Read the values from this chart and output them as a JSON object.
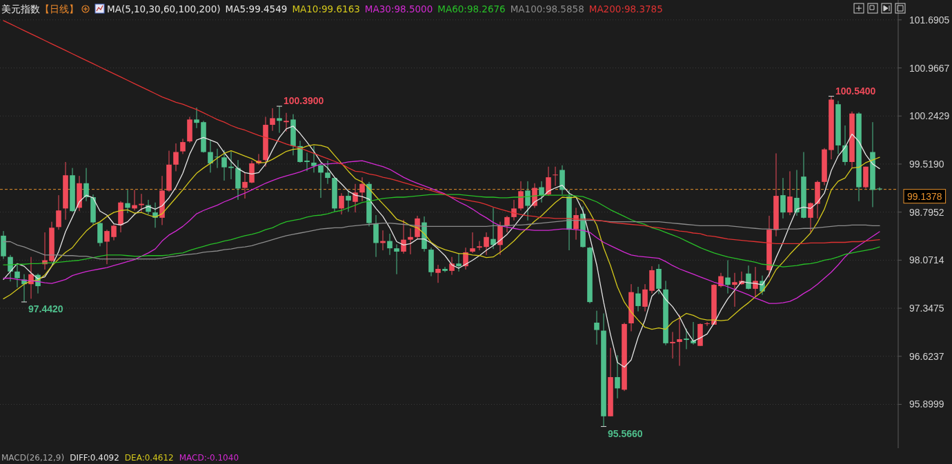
{
  "chart_data": {
    "type": "candlestick",
    "title": "美元指数",
    "subtitle": "【日线】",
    "legend_title": "MA(5,10,30,60,100,200)",
    "categories": [
      null,
      null,
      null,
      null,
      null,
      null,
      null,
      null,
      null,
      null,
      null,
      null,
      null,
      null,
      null,
      null,
      null,
      null,
      null,
      null,
      null,
      null,
      null,
      null,
      null,
      null,
      null,
      null,
      null,
      null,
      null,
      null,
      null,
      null,
      null,
      null,
      null,
      null,
      null,
      null,
      null,
      null,
      null,
      null,
      null,
      null,
      null,
      null,
      null,
      null,
      null,
      null,
      null,
      null,
      null,
      null,
      null,
      null,
      null,
      null,
      null,
      null,
      null,
      null,
      null,
      null,
      null,
      null,
      null,
      null,
      null,
      null,
      null,
      null,
      null,
      null,
      null,
      null,
      null,
      null,
      null,
      null,
      null,
      null,
      null,
      null,
      null,
      null,
      null,
      null,
      null,
      null,
      null,
      null,
      null,
      null,
      null,
      null,
      null,
      null,
      null,
      null,
      null,
      null,
      null,
      null,
      null,
      null,
      null,
      null,
      null,
      null,
      null,
      null,
      null,
      null,
      null,
      null,
      null,
      null,
      null,
      null,
      null,
      null,
      null,
      null,
      null,
      null
    ],
    "ohlc": [
      [
        98.44,
        98.51,
        98.09,
        98.13
      ],
      [
        98.12,
        98.15,
        97.75,
        97.9
      ],
      [
        97.9,
        98.01,
        97.66,
        97.8
      ],
      [
        97.78,
        97.86,
        97.442,
        97.71
      ],
      [
        97.71,
        98.12,
        97.49,
        97.86
      ],
      [
        97.85,
        97.87,
        97.57,
        97.68
      ],
      [
        98.01,
        98.49,
        97.93,
        98.07
      ],
      [
        98.06,
        98.65,
        98.04,
        98.56
      ],
      [
        98.57,
        99.05,
        98.53,
        98.82
      ],
      [
        98.85,
        99.55,
        98.68,
        99.35
      ],
      [
        99.35,
        99.46,
        98.8,
        98.81
      ],
      [
        98.86,
        99.34,
        98.81,
        99.23
      ],
      [
        99.23,
        99.46,
        98.96,
        99.02
      ],
      [
        99.02,
        99.06,
        98.61,
        98.64
      ],
      [
        98.63,
        98.64,
        98.28,
        98.33
      ],
      [
        98.35,
        98.53,
        98.01,
        98.51
      ],
      [
        98.42,
        98.61,
        98.37,
        98.59
      ],
      [
        98.6,
        98.96,
        98.49,
        98.94
      ],
      [
        98.93,
        99.13,
        98.78,
        98.86
      ],
      [
        98.85,
        99.13,
        98.82,
        98.9
      ],
      [
        98.9,
        99.07,
        98.8,
        98.92
      ],
      [
        98.9,
        98.98,
        98.76,
        98.8
      ],
      [
        98.79,
        98.94,
        98.56,
        98.71
      ],
      [
        98.71,
        99.34,
        98.6,
        99.12
      ],
      [
        99.12,
        99.72,
        99.1,
        99.51
      ],
      [
        99.51,
        99.83,
        99.41,
        99.7
      ],
      [
        99.71,
        99.9,
        99.67,
        99.85
      ],
      [
        99.86,
        100.23,
        99.84,
        100.19
      ],
      [
        100.19,
        100.37,
        100.06,
        100.14
      ],
      [
        100.15,
        100.17,
        99.69,
        99.7
      ],
      [
        99.7,
        99.88,
        99.39,
        99.53
      ],
      [
        99.63,
        99.75,
        99.46,
        99.62
      ],
      [
        99.62,
        99.73,
        99.27,
        99.47
      ],
      [
        99.48,
        99.71,
        99.29,
        99.46
      ],
      [
        99.46,
        99.58,
        98.98,
        99.15
      ],
      [
        99.16,
        99.39,
        99.0,
        99.25
      ],
      [
        99.24,
        99.57,
        99.23,
        99.53
      ],
      [
        99.53,
        99.67,
        99.51,
        99.57
      ],
      [
        99.58,
        100.23,
        99.48,
        100.11
      ],
      [
        100.11,
        100.36,
        100.02,
        100.21
      ],
      [
        100.21,
        100.39,
        99.99,
        100.17
      ],
      [
        100.15,
        100.29,
        100.01,
        100.17
      ],
      [
        100.19,
        100.27,
        99.65,
        99.79
      ],
      [
        99.79,
        99.87,
        99.54,
        99.55
      ],
      [
        99.57,
        99.69,
        99.41,
        99.55
      ],
      [
        99.54,
        99.79,
        99.39,
        99.49
      ],
      [
        99.5,
        99.53,
        99.01,
        99.39
      ],
      [
        99.39,
        99.57,
        99.22,
        99.31
      ],
      [
        99.31,
        99.32,
        98.8,
        98.85
      ],
      [
        98.85,
        99.08,
        98.76,
        99.04
      ],
      [
        99.04,
        99.12,
        98.8,
        98.97
      ],
      [
        98.95,
        99.22,
        98.79,
        99.09
      ],
      [
        99.09,
        99.32,
        98.96,
        99.22
      ],
      [
        99.22,
        99.25,
        98.58,
        98.63
      ],
      [
        98.62,
        98.75,
        98.12,
        98.33
      ],
      [
        98.33,
        98.52,
        98.22,
        98.36
      ],
      [
        98.36,
        98.47,
        98.15,
        98.25
      ],
      [
        98.25,
        98.31,
        97.86,
        98.2
      ],
      [
        98.2,
        98.68,
        98.17,
        98.38
      ],
      [
        98.38,
        98.55,
        98.16,
        98.42
      ],
      [
        98.42,
        98.74,
        98.39,
        98.7
      ],
      [
        98.64,
        98.73,
        98.2,
        98.24
      ],
      [
        98.23,
        98.26,
        97.83,
        97.89
      ],
      [
        97.88,
        98.0,
        97.73,
        97.94
      ],
      [
        97.94,
        97.97,
        97.89,
        97.91
      ],
      [
        97.91,
        98.12,
        97.85,
        98.02
      ],
      [
        98.02,
        98.18,
        97.9,
        97.98
      ],
      [
        97.98,
        98.26,
        97.93,
        98.19
      ],
      [
        98.2,
        98.49,
        98.18,
        98.25
      ],
      [
        98.26,
        98.36,
        98.22,
        98.28
      ],
      [
        98.27,
        98.49,
        98.15,
        98.42
      ],
      [
        98.39,
        98.86,
        98.24,
        98.3
      ],
      [
        98.3,
        98.65,
        98.15,
        98.59
      ],
      [
        98.59,
        98.74,
        98.49,
        98.72
      ],
      [
        98.72,
        98.98,
        98.67,
        98.85
      ],
      [
        98.85,
        99.26,
        98.82,
        99.11
      ],
      [
        99.12,
        99.26,
        98.67,
        98.89
      ],
      [
        98.89,
        99.23,
        98.86,
        99.16
      ],
      [
        99.17,
        99.26,
        98.94,
        99.05
      ],
      [
        99.06,
        99.48,
        99.04,
        99.32
      ],
      [
        99.35,
        99.48,
        99.19,
        99.36
      ],
      [
        99.43,
        99.5,
        99.06,
        99.13
      ],
      [
        99.03,
        99.13,
        98.22,
        98.53
      ],
      [
        98.54,
        98.86,
        98.38,
        98.75
      ],
      [
        98.77,
        98.88,
        98.26,
        98.27
      ],
      [
        98.26,
        98.27,
        97.42,
        97.44
      ],
      [
        97.13,
        97.31,
        96.8,
        97.02
      ],
      [
        97.01,
        97.27,
        95.566,
        95.72
      ],
      [
        95.72,
        96.75,
        95.72,
        96.31
      ],
      [
        96.31,
        96.64,
        95.99,
        96.14
      ],
      [
        96.12,
        97.13,
        96.1,
        97.11
      ],
      [
        97.12,
        97.71,
        97.0,
        97.59
      ],
      [
        97.57,
        97.67,
        97.3,
        97.38
      ],
      [
        97.37,
        97.71,
        97.3,
        97.63
      ],
      [
        97.61,
        97.98,
        97.57,
        97.92
      ],
      [
        97.94,
        98.01,
        97.56,
        97.64
      ],
      [
        97.63,
        97.76,
        96.79,
        96.82
      ],
      [
        96.82,
        96.99,
        96.59,
        96.84
      ],
      [
        96.84,
        97.25,
        96.48,
        96.88
      ],
      [
        96.89,
        97.04,
        96.73,
        96.87
      ],
      [
        96.86,
        97.14,
        96.8,
        96.82
      ],
      [
        96.78,
        97.12,
        96.78,
        97.11
      ],
      [
        97.11,
        97.14,
        97.08,
        97.12
      ],
      [
        97.1,
        97.71,
        97.1,
        97.7
      ],
      [
        97.68,
        97.88,
        97.66,
        97.83
      ],
      [
        97.81,
        98.07,
        97.57,
        97.7
      ],
      [
        97.7,
        97.88,
        97.37,
        97.74
      ],
      [
        97.71,
        97.9,
        97.7,
        97.76
      ],
      [
        97.87,
        97.99,
        97.63,
        97.64
      ],
      [
        97.64,
        97.97,
        97.52,
        97.76
      ],
      [
        97.76,
        97.84,
        97.55,
        97.6
      ],
      [
        97.92,
        98.74,
        97.81,
        98.53
      ],
      [
        98.53,
        99.68,
        98.43,
        99.04
      ],
      [
        99.05,
        99.31,
        98.7,
        98.79
      ],
      [
        98.79,
        99.41,
        98.75,
        99.03
      ],
      [
        99.01,
        99.43,
        98.74,
        98.79
      ],
      [
        99.33,
        99.7,
        98.7,
        98.71
      ],
      [
        98.71,
        98.94,
        98.49,
        98.93
      ],
      [
        98.92,
        99.27,
        98.7,
        99.25
      ],
      [
        99.25,
        99.76,
        99.2,
        99.74
      ],
      [
        99.73,
        100.54,
        99.59,
        100.49
      ],
      [
        100.42,
        100.47,
        99.67,
        99.8
      ],
      [
        99.8,
        100.1,
        99.5,
        99.55
      ],
      [
        99.55,
        100.31,
        99.46,
        100.28
      ],
      [
        100.28,
        100.3,
        98.96,
        99.17
      ],
      [
        99.17,
        99.48,
        99.15,
        99.48
      ],
      [
        99.7,
        100.15,
        98.87,
        99.13
      ],
      [
        99.15,
        99.17,
        99.12,
        99.1378
      ]
    ],
    "colors": [
      "#4fbf8c",
      "#4fbf8c",
      "#4fbf8c",
      "#4fbf8c",
      "#f04b5a",
      "#4fbf8c",
      "#f04b5a",
      "#f04b5a",
      "#f04b5a",
      "#f04b5a",
      "#4fbf8c",
      "#f04b5a",
      "#4fbf8c",
      "#4fbf8c",
      "#4fbf8c",
      "#f04b5a",
      "#f04b5a",
      "#f04b5a",
      "#4fbf8c",
      "#f04b5a",
      "#f04b5a",
      "#4fbf8c",
      "#4fbf8c",
      "#f04b5a",
      "#f04b5a",
      "#f04b5a",
      "#f04b5a",
      "#f04b5a",
      "#4fbf8c",
      "#4fbf8c",
      "#4fbf8c",
      "#4fbf8c",
      "#4fbf8c",
      "#4fbf8c",
      "#4fbf8c",
      "#f04b5a",
      "#f04b5a",
      "#f04b5a",
      "#f04b5a",
      "#f04b5a",
      "#4fbf8c",
      "#f04b5a",
      "#4fbf8c",
      "#4fbf8c",
      "#4fbf8c",
      "#4fbf8c",
      "#4fbf8c",
      "#4fbf8c",
      "#4fbf8c",
      "#f04b5a",
      "#4fbf8c",
      "#f04b5a",
      "#f04b5a",
      "#4fbf8c",
      "#4fbf8c",
      "#f04b5a",
      "#4fbf8c",
      "#4fbf8c",
      "#f04b5a",
      "#f04b5a",
      "#f04b5a",
      "#4fbf8c",
      "#4fbf8c",
      "#f04b5a",
      "#4fbf8c",
      "#f04b5a",
      "#4fbf8c",
      "#f04b5a",
      "#f04b5a",
      "#f04b5a",
      "#f04b5a",
      "#4fbf8c",
      "#f04b5a",
      "#f04b5a",
      "#f04b5a",
      "#f04b5a",
      "#4fbf8c",
      "#f04b5a",
      "#4fbf8c",
      "#f04b5a",
      "#f04b5a",
      "#4fbf8c",
      "#4fbf8c",
      "#f04b5a",
      "#4fbf8c",
      "#4fbf8c",
      "#4fbf8c",
      "#4fbf8c",
      "#f04b5a",
      "#4fbf8c",
      "#f04b5a",
      "#f04b5a",
      "#4fbf8c",
      "#f04b5a",
      "#f04b5a",
      "#4fbf8c",
      "#4fbf8c",
      "#f04b5a",
      "#f04b5a",
      "#4fbf8c",
      "#4fbf8c",
      "#f04b5a",
      "#f04b5a",
      "#f04b5a",
      "#f04b5a",
      "#4fbf8c",
      "#f04b5a",
      "#f04b5a",
      "#4fbf8c",
      "#f04b5a",
      "#4fbf8c",
      "#f04b5a",
      "#f04b5a",
      "#4fbf8c",
      "#f04b5a",
      "#4fbf8c",
      "#4fbf8c",
      "#f04b5a",
      "#f04b5a",
      "#f04b5a",
      "#f04b5a",
      "#4fbf8c",
      "#4fbf8c",
      "#f04b5a",
      "#4fbf8c",
      "#f04b5a",
      "#4fbf8c",
      "#4fbf8c"
    ],
    "series": [
      {
        "name": "MA5:99.4549",
        "type": "line",
        "color": "#e6e6e6",
        "values": [
          97.78,
          97.9,
          98.02,
          97.98,
          97.88,
          97.79,
          97.82,
          97.98,
          98.2,
          98.5,
          98.72,
          98.95,
          99.05,
          99.01,
          98.81,
          98.75,
          98.62,
          98.6,
          98.65,
          98.76,
          98.84,
          98.88,
          98.84,
          98.89,
          99.01,
          99.17,
          99.38,
          99.67,
          99.88,
          99.92,
          99.88,
          99.84,
          99.69,
          99.56,
          99.45,
          99.39,
          99.37,
          99.39,
          99.52,
          99.73,
          99.92,
          100.05,
          100.09,
          99.98,
          99.85,
          99.71,
          99.55,
          99.46,
          99.32,
          99.22,
          99.11,
          99.05,
          99.03,
          98.99,
          98.85,
          98.73,
          98.56,
          98.35,
          98.3,
          98.32,
          98.39,
          98.39,
          98.33,
          98.24,
          98.14,
          98.0,
          97.95,
          98.01,
          98.07,
          98.14,
          98.22,
          98.29,
          98.37,
          98.46,
          98.58,
          98.71,
          98.83,
          98.95,
          99.01,
          99.11,
          99.16,
          99.2,
          99.08,
          99.02,
          98.81,
          98.42,
          98.0,
          97.44,
          96.95,
          96.53,
          96.46,
          96.57,
          96.91,
          97.17,
          97.53,
          97.63,
          97.48,
          97.37,
          97.22,
          97.01,
          96.85,
          96.9,
          96.96,
          97.12,
          97.32,
          97.49,
          97.62,
          97.75,
          97.73,
          97.72,
          97.7,
          97.86,
          98.11,
          98.34,
          98.6,
          98.84,
          98.87,
          98.85,
          98.94,
          99.08,
          99.42,
          99.64,
          99.77,
          99.97,
          99.86,
          99.66,
          99.52,
          99.45
        ]
      },
      {
        "name": "MA10:99.6163",
        "type": "line",
        "color": "#d4c81c",
        "values": [
          97.49,
          97.55,
          97.63,
          97.71,
          97.76,
          97.77,
          97.85,
          97.98,
          98.09,
          98.19,
          98.26,
          98.39,
          98.51,
          98.6,
          98.65,
          98.73,
          98.79,
          98.82,
          98.83,
          98.78,
          98.79,
          98.75,
          98.72,
          98.77,
          98.89,
          99.01,
          99.13,
          99.26,
          99.38,
          99.46,
          99.53,
          99.61,
          99.68,
          99.72,
          99.68,
          99.64,
          99.6,
          99.54,
          99.54,
          99.59,
          99.65,
          99.71,
          99.74,
          99.75,
          99.79,
          99.81,
          99.8,
          99.77,
          99.65,
          99.53,
          99.41,
          99.3,
          99.25,
          99.15,
          99.03,
          98.92,
          98.81,
          98.69,
          98.65,
          98.59,
          98.56,
          98.47,
          98.34,
          98.27,
          98.23,
          98.2,
          98.17,
          98.17,
          98.15,
          98.14,
          98.11,
          98.12,
          98.19,
          98.27,
          98.36,
          98.47,
          98.56,
          98.66,
          98.74,
          98.84,
          98.94,
          99.02,
          99.01,
          99.02,
          98.96,
          98.79,
          98.6,
          98.26,
          97.99,
          97.67,
          97.44,
          97.29,
          97.17,
          97.06,
          97.03,
          97.05,
          97.03,
          97.14,
          97.2,
          97.27,
          97.24,
          97.19,
          97.17,
          97.17,
          97.16,
          97.17,
          97.26,
          97.35,
          97.43,
          97.52,
          97.6,
          97.74,
          97.93,
          98.04,
          98.16,
          98.27,
          98.37,
          98.48,
          98.64,
          98.84,
          99.13,
          99.26,
          99.31,
          99.46,
          99.47,
          99.54,
          99.58,
          99.62
        ]
      },
      {
        "name": "MA30:98.5000",
        "type": "line",
        "color": "#d42ad4",
        "values": [
          97.8,
          97.8,
          97.78,
          97.77,
          97.76,
          97.75,
          97.73,
          97.72,
          97.75,
          97.78,
          97.84,
          97.87,
          97.9,
          97.92,
          97.94,
          97.96,
          97.99,
          98.02,
          98.05,
          98.08,
          98.13,
          98.18,
          98.24,
          98.36,
          98.45,
          98.51,
          98.58,
          98.67,
          98.77,
          98.82,
          98.86,
          98.9,
          98.95,
          98.99,
          99.04,
          99.08,
          99.13,
          99.18,
          99.23,
          99.27,
          99.31,
          99.34,
          99.37,
          99.4,
          99.44,
          99.48,
          99.52,
          99.52,
          99.53,
          99.53,
          99.55,
          99.56,
          99.57,
          99.54,
          99.51,
          99.48,
          99.44,
          99.38,
          99.32,
          99.27,
          99.23,
          99.19,
          99.15,
          99.11,
          99.07,
          99.01,
          98.95,
          98.9,
          98.84,
          98.77,
          98.71,
          98.64,
          98.59,
          98.57,
          98.55,
          98.53,
          98.53,
          98.52,
          98.52,
          98.52,
          98.53,
          98.54,
          98.54,
          98.53,
          98.52,
          98.49,
          98.41,
          98.34,
          98.29,
          98.24,
          98.19,
          98.15,
          98.13,
          98.12,
          98.11,
          98.1,
          98.05,
          97.99,
          97.94,
          97.9,
          97.86,
          97.82,
          97.78,
          97.74,
          97.71,
          97.67,
          97.63,
          97.59,
          97.55,
          97.5,
          97.46,
          97.42,
          97.42,
          97.43,
          97.45,
          97.5,
          97.57,
          97.63,
          97.71,
          97.8,
          97.89,
          98.0,
          98.12,
          98.22,
          98.29,
          98.36,
          98.43,
          98.5
        ]
      },
      {
        "name": "MA60:98.2676",
        "type": "line",
        "color": "#28c028",
        "values": [
          98.0,
          98.0,
          98.01,
          98.01,
          98.02,
          98.02,
          98.03,
          98.03,
          98.04,
          98.05,
          98.06,
          98.07,
          98.09,
          98.11,
          98.13,
          98.15,
          98.15,
          98.15,
          98.14,
          98.13,
          98.13,
          98.14,
          98.14,
          98.14,
          98.15,
          98.17,
          98.18,
          98.22,
          98.25,
          98.28,
          98.31,
          98.33,
          98.36,
          98.38,
          98.41,
          98.44,
          98.46,
          98.49,
          98.53,
          98.56,
          98.61,
          98.65,
          98.67,
          98.69,
          98.72,
          98.74,
          98.75,
          98.77,
          98.8,
          98.82,
          98.86,
          98.9,
          98.94,
          98.96,
          98.98,
          99.0,
          99.01,
          99.02,
          99.02,
          99.03,
          99.04,
          99.05,
          99.06,
          99.06,
          99.06,
          99.06,
          99.06,
          99.05,
          99.04,
          99.03,
          99.02,
          99.02,
          99.01,
          99.01,
          99.02,
          99.02,
          99.03,
          99.04,
          99.05,
          99.05,
          99.05,
          99.05,
          99.05,
          99.04,
          99.03,
          98.99,
          98.95,
          98.89,
          98.83,
          98.78,
          98.73,
          98.68,
          98.64,
          98.61,
          98.56,
          98.53,
          98.49,
          98.45,
          98.41,
          98.36,
          98.31,
          98.26,
          98.22,
          98.18,
          98.15,
          98.12,
          98.1,
          98.08,
          98.06,
          98.04,
          98.01,
          98.0,
          97.99,
          97.97,
          97.98,
          97.99,
          98.01,
          98.02,
          98.04,
          98.07,
          98.09,
          98.12,
          98.16,
          98.18,
          98.2,
          98.22,
          98.24,
          98.27
        ]
      },
      {
        "name": "MA100:98.5858",
        "type": "line",
        "color": "#8c8c8c",
        "values": [
          98.35,
          98.35,
          98.3,
          98.27,
          98.23,
          98.19,
          98.15,
          98.15,
          98.15,
          98.14,
          98.14,
          98.13,
          98.13,
          98.11,
          98.09,
          98.09,
          98.09,
          98.09,
          98.09,
          98.09,
          98.09,
          98.09,
          98.09,
          98.1,
          98.12,
          98.13,
          98.15,
          98.16,
          98.17,
          98.19,
          98.2,
          98.21,
          98.23,
          98.24,
          98.26,
          98.27,
          98.29,
          98.32,
          98.35,
          98.38,
          98.41,
          98.44,
          98.46,
          98.48,
          98.5,
          98.52,
          98.54,
          98.55,
          98.56,
          98.56,
          98.58,
          98.59,
          98.6,
          98.61,
          98.62,
          98.63,
          98.63,
          98.62,
          98.61,
          98.6,
          98.59,
          98.58,
          98.58,
          98.58,
          98.58,
          98.58,
          98.58,
          98.58,
          98.58,
          98.58,
          98.58,
          98.59,
          98.59,
          98.59,
          98.6,
          98.6,
          98.61,
          98.62,
          98.63,
          98.64,
          98.65,
          98.66,
          98.67,
          98.67,
          98.67,
          98.67,
          98.67,
          98.66,
          98.65,
          98.65,
          98.65,
          98.65,
          98.65,
          98.65,
          98.65,
          98.65,
          98.64,
          98.63,
          98.62,
          98.61,
          98.6,
          98.59,
          98.59,
          98.59,
          98.59,
          98.59,
          98.58,
          98.57,
          98.56,
          98.55,
          98.54,
          98.54,
          98.53,
          98.54,
          98.54,
          98.54,
          98.55,
          98.55,
          98.56,
          98.57,
          98.58,
          98.59,
          98.59,
          98.6,
          98.6,
          98.6,
          98.59,
          98.59
        ]
      },
      {
        "name": "MA200:98.3785",
        "type": "line",
        "color": "#e03232",
        "values": [
          101.68,
          101.63,
          101.58,
          101.53,
          101.48,
          101.43,
          101.38,
          101.33,
          101.28,
          101.23,
          101.18,
          101.13,
          101.08,
          101.03,
          100.98,
          100.93,
          100.88,
          100.83,
          100.78,
          100.73,
          100.68,
          100.63,
          100.58,
          100.53,
          100.49,
          100.45,
          100.42,
          100.38,
          100.34,
          100.29,
          100.24,
          100.19,
          100.15,
          100.1,
          100.06,
          100.03,
          99.99,
          99.95,
          99.92,
          99.89,
          99.86,
          99.82,
          99.79,
          99.76,
          99.72,
          99.68,
          99.64,
          99.6,
          99.56,
          99.52,
          99.46,
          99.41,
          99.4,
          99.37,
          99.35,
          99.32,
          99.3,
          99.27,
          99.24,
          99.21,
          99.18,
          99.15,
          99.12,
          99.09,
          99.06,
          99.02,
          99.0,
          98.98,
          98.96,
          98.94,
          98.91,
          98.87,
          98.84,
          98.81,
          98.78,
          98.76,
          98.74,
          98.73,
          98.71,
          98.71,
          98.7,
          98.7,
          98.7,
          98.69,
          98.69,
          98.69,
          98.67,
          98.66,
          98.64,
          98.63,
          98.62,
          98.61,
          98.6,
          98.59,
          98.57,
          98.56,
          98.54,
          98.53,
          98.51,
          98.5,
          98.48,
          98.47,
          98.44,
          98.43,
          98.41,
          98.39,
          98.38,
          98.37,
          98.36,
          98.35,
          98.34,
          98.33,
          98.32,
          98.32,
          98.32,
          98.32,
          98.32,
          98.33,
          98.33,
          98.33,
          98.34,
          98.34,
          98.34,
          98.35,
          98.35,
          98.36,
          98.37,
          98.38
        ]
      }
    ],
    "ylim": [
      95.24,
      101.99
    ],
    "yticks": [
      101.6905,
      100.9667,
      100.2429,
      {
        "value": 99.519,
        "label": "99.5190"
      },
      98.7952,
      98.0714,
      97.3475,
      96.6237,
      95.8999
    ],
    "ref_lines": [
      {
        "axis": "y",
        "value": 99.1378,
        "label": "99.1378",
        "color": "#e8922e",
        "line_style": "dashed"
      }
    ],
    "annotations": [
      "100.3900",
      "97.4420",
      "100.5400",
      "95.5660",
      "MACD(26,12,9)",
      "DIFF:0.4092",
      "DEA:0.4612",
      "MACD:-0.1040"
    ],
    "grid": "y",
    "legend": "top",
    "tick_labels": "y"
  }
}
